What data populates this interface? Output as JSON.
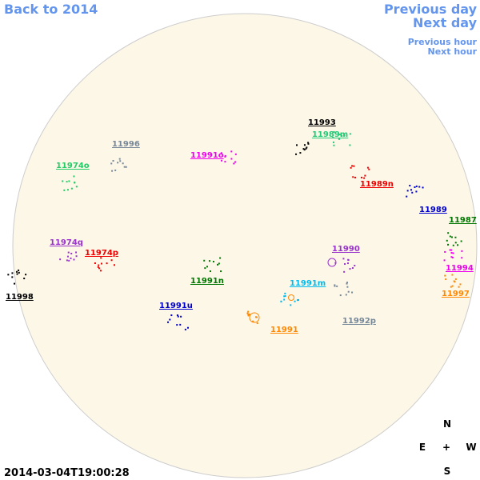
{
  "nav": {
    "back": "Back to 2014",
    "previous_day": "Previous day",
    "next_day": "Next day",
    "previous_hour": "Previous hour",
    "next_hour": "Next hour"
  },
  "timestamp": "2014-03-04T19:00:28",
  "compass": {
    "north": "N",
    "east": "E",
    "center": "+",
    "west": "W",
    "south": "S"
  },
  "regions": [
    {
      "label": "11993",
      "color": "#000000"
    },
    {
      "label": "11989m",
      "color": "#22cc77"
    },
    {
      "label": "11996",
      "color": "#778899"
    },
    {
      "label": "11991o",
      "color": "#ee00ee"
    },
    {
      "label": "11974o",
      "color": "#22cc66"
    },
    {
      "label": "11989n",
      "color": "#ee0000"
    },
    {
      "label": "11989",
      "color": "#0000cc"
    },
    {
      "label": "11987",
      "color": "#007700"
    },
    {
      "label": "11974q",
      "color": "#9933cc"
    },
    {
      "label": "11990",
      "color": "#9933cc"
    },
    {
      "label": "11974p",
      "color": "#ee0000"
    },
    {
      "label": "11994",
      "color": "#ee00ee"
    },
    {
      "label": "11991n",
      "color": "#007700"
    },
    {
      "label": "11991m",
      "color": "#00bbee"
    },
    {
      "label": "11997",
      "color": "#ff8800"
    },
    {
      "label": "11998",
      "color": "#000000"
    },
    {
      "label": "11991u",
      "color": "#0000cc"
    },
    {
      "label": "11992p",
      "color": "#778899"
    },
    {
      "label": "11991",
      "color": "#ff8800"
    }
  ]
}
